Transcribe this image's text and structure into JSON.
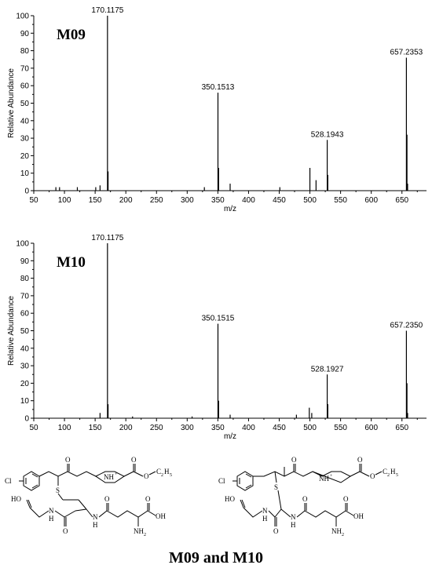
{
  "caption": "M09 and M10",
  "chart_data": [
    {
      "type": "bar",
      "title": "M09",
      "xlabel": "m/z",
      "ylabel": "Relative Abundance",
      "xlim": [
        50,
        690
      ],
      "ylim": [
        0,
        100
      ],
      "xticks": [
        50,
        100,
        150,
        200,
        250,
        300,
        350,
        400,
        450,
        500,
        550,
        600,
        650
      ],
      "yticks": [
        0,
        10,
        20,
        30,
        40,
        50,
        60,
        70,
        80,
        90,
        100
      ],
      "peaks": [
        {
          "x": 86,
          "y": 2
        },
        {
          "x": 92,
          "y": 2
        },
        {
          "x": 121,
          "y": 2
        },
        {
          "x": 151,
          "y": 2
        },
        {
          "x": 158,
          "y": 3
        },
        {
          "x": 170.1175,
          "y": 100
        },
        {
          "x": 171.1,
          "y": 11
        },
        {
          "x": 328,
          "y": 2
        },
        {
          "x": 350.1513,
          "y": 56
        },
        {
          "x": 351.2,
          "y": 13
        },
        {
          "x": 370,
          "y": 4
        },
        {
          "x": 451,
          "y": 2
        },
        {
          "x": 500,
          "y": 13
        },
        {
          "x": 510,
          "y": 6
        },
        {
          "x": 528.1943,
          "y": 29
        },
        {
          "x": 529.2,
          "y": 9
        },
        {
          "x": 657.2353,
          "y": 76
        },
        {
          "x": 658.2,
          "y": 32
        },
        {
          "x": 659.2,
          "y": 4
        }
      ],
      "labels": [
        {
          "x": 170.1175,
          "y": 100,
          "text": "170.1175"
        },
        {
          "x": 350.1513,
          "y": 56,
          "text": "350.1513"
        },
        {
          "x": 528.1943,
          "y": 29,
          "text": "528.1943"
        },
        {
          "x": 657.2353,
          "y": 76,
          "text": "657.2353"
        }
      ]
    },
    {
      "type": "bar",
      "title": "M10",
      "xlabel": "m/z",
      "ylabel": "Relative Abundance",
      "xlim": [
        50,
        690
      ],
      "ylim": [
        0,
        100
      ],
      "xticks": [
        50,
        100,
        150,
        200,
        250,
        300,
        350,
        400,
        450,
        500,
        550,
        600,
        650
      ],
      "yticks": [
        0,
        10,
        20,
        30,
        40,
        50,
        60,
        70,
        80,
        90,
        100
      ],
      "peaks": [
        {
          "x": 158,
          "y": 3
        },
        {
          "x": 170.1175,
          "y": 100
        },
        {
          "x": 171.1,
          "y": 8
        },
        {
          "x": 211,
          "y": 1
        },
        {
          "x": 308,
          "y": 1
        },
        {
          "x": 350.1515,
          "y": 54
        },
        {
          "x": 351.2,
          "y": 10
        },
        {
          "x": 370,
          "y": 2
        },
        {
          "x": 478,
          "y": 2
        },
        {
          "x": 499,
          "y": 6
        },
        {
          "x": 503,
          "y": 3
        },
        {
          "x": 528.1927,
          "y": 25
        },
        {
          "x": 529.2,
          "y": 8
        },
        {
          "x": 657.235,
          "y": 50
        },
        {
          "x": 658.2,
          "y": 20
        },
        {
          "x": 659.2,
          "y": 3
        }
      ],
      "labels": [
        {
          "x": 170.1175,
          "y": 100,
          "text": "170.1175"
        },
        {
          "x": 350.1515,
          "y": 54,
          "text": "350.1515"
        },
        {
          "x": 528.1927,
          "y": 25,
          "text": "528.1927"
        },
        {
          "x": 657.235,
          "y": 50,
          "text": "657.2350"
        }
      ]
    }
  ],
  "structures": {
    "left": {
      "cl": "Cl",
      "o_ketone": "O",
      "o_ester": "O",
      "ethyl": "C",
      "ethyl_sub1": "2",
      "ethyl_h": "H",
      "ethyl_sub2": "5",
      "nh_plus": "NH",
      "nh_charge": "+",
      "s": "S",
      "ho_left": "HO",
      "o_left": "O",
      "n_left": "N",
      "n_left_h": "H",
      "o_amide1": "O",
      "n_mid": "N",
      "n_mid_h": "H",
      "o_amide2": "O",
      "o_acid": "O",
      "oh_acid": "OH",
      "nh2": "NH",
      "nh2_sub": "2"
    },
    "right": {
      "cl": "Cl",
      "o_ketone": "O",
      "o_ester": "O",
      "ethyl": "C",
      "ethyl_sub1": "2",
      "ethyl_h": "H",
      "ethyl_sub2": "5",
      "nh_plus": "NH",
      "nh_charge": "+",
      "s": "S",
      "ho_left": "HO",
      "o_left": "O",
      "n_left": "N",
      "n_left_h": "H",
      "o_amide1": "O",
      "n_mid": "N",
      "n_mid_h": "H",
      "o_amide2": "O",
      "o_acid": "O",
      "oh_acid": "OH",
      "nh2": "NH",
      "nh2_sub": "2"
    }
  }
}
